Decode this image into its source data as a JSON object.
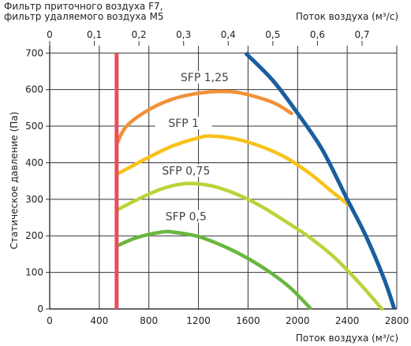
{
  "chart_data": {
    "type": "line",
    "title_lines": [
      "Фильтр приточного воздуха F7,",
      "фильтр удаляемого воздуха M5"
    ],
    "xlabel_bottom": "Поток воздуха (м³/с)",
    "xlabel_top": "Поток воздуха (м³/с)",
    "ylabel": "Статическое давление (Па)",
    "xlim": [
      0,
      2800
    ],
    "ylim": [
      0,
      720
    ],
    "x_ticks": [
      "0",
      "400",
      "800",
      "1200",
      "1600",
      "2000",
      "2400",
      "2800"
    ],
    "y_ticks": [
      "0",
      "100",
      "200",
      "300",
      "400",
      "500",
      "600",
      "700"
    ],
    "top_axis_ticks": [
      "0",
      "0,1",
      "0,2",
      "0,3",
      "0,4",
      "0,5",
      "0,6",
      "0,7"
    ],
    "grid": true,
    "series": [
      {
        "name": "SFP 1,25",
        "color": "#f0913a",
        "x": [
          540,
          620,
          800,
          1000,
          1200,
          1380,
          1550,
          1800,
          1950
        ],
        "y": [
          450,
          500,
          545,
          575,
          590,
          595,
          590,
          565,
          535
        ]
      },
      {
        "name": "SFP 1",
        "color": "#f8c21a",
        "x": [
          540,
          800,
          1000,
          1200,
          1300,
          1500,
          1700,
          1900,
          2100,
          2280,
          2410
        ],
        "y": [
          368,
          415,
          447,
          468,
          473,
          465,
          445,
          415,
          370,
          320,
          285
        ]
      },
      {
        "name": "SFP 0,75",
        "color": "#b9d43a",
        "x": [
          540,
          700,
          900,
          1100,
          1300,
          1500,
          1700,
          1900,
          2100,
          2300,
          2500,
          2680
        ],
        "y": [
          270,
          298,
          328,
          343,
          337,
          315,
          282,
          240,
          195,
          140,
          70,
          0
        ]
      },
      {
        "name": "SFP 0,5",
        "color": "#6ab63f",
        "x": [
          540,
          700,
          900,
          1000,
          1200,
          1400,
          1600,
          1800,
          1950,
          2100
        ],
        "y": [
          172,
          195,
          210,
          210,
          198,
          172,
          138,
          95,
          55,
          3
        ]
      }
    ],
    "boundary_lines": [
      {
        "role": "min-flow",
        "color": "#e84e5a",
        "x": [
          540,
          540
        ],
        "y": [
          0,
          700
        ]
      },
      {
        "role": "max-flow",
        "color": "#1b5ea0",
        "x": [
          1580,
          1800,
          2000,
          2200,
          2400,
          2550,
          2700,
          2780
        ],
        "y": [
          700,
          625,
          535,
          435,
          300,
          200,
          80,
          0
        ]
      }
    ]
  }
}
